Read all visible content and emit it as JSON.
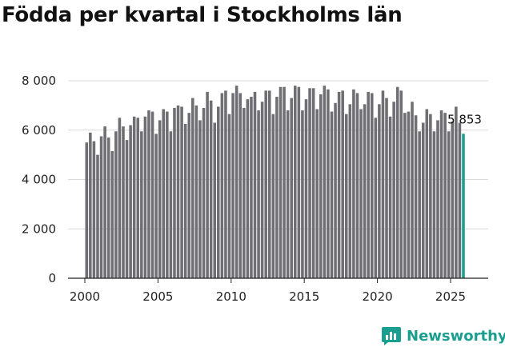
{
  "chart_data": {
    "type": "bar",
    "title": "Födda per kvartal i Stockholms län",
    "xlabel": "",
    "ylabel": "",
    "ylim": [
      0,
      8000
    ],
    "yticks": [
      0,
      2000,
      4000,
      6000,
      8000
    ],
    "ytick_labels": [
      "0",
      "2 000",
      "4 000",
      "6 000",
      "8 000"
    ],
    "xticks": [
      2000,
      2005,
      2010,
      2015,
      2020,
      2025
    ],
    "xtick_labels": [
      "2000",
      "2005",
      "2010",
      "2015",
      "2020",
      "2025"
    ],
    "start_year": 2000,
    "quarters_per_year": 4,
    "colors": {
      "bar": "#6e6e73",
      "highlight": "#1a9e8f",
      "grid": "#d9d9d9"
    },
    "highlight_index": 103,
    "annotation": "5 853",
    "values": [
      5500,
      5900,
      5550,
      5000,
      5750,
      6150,
      5700,
      5150,
      5950,
      6500,
      6150,
      5600,
      6200,
      6550,
      6500,
      5950,
      6550,
      6800,
      6750,
      5850,
      6400,
      6850,
      6750,
      5950,
      6900,
      7000,
      6950,
      6250,
      6700,
      7300,
      7000,
      6400,
      6900,
      7550,
      7200,
      6300,
      6950,
      7500,
      7600,
      6650,
      7500,
      7800,
      7500,
      6900,
      7250,
      7350,
      7550,
      6800,
      7150,
      7600,
      7600,
      6650,
      7350,
      7750,
      7750,
      6800,
      7300,
      7800,
      7750,
      6800,
      7250,
      7700,
      7700,
      6850,
      7450,
      7800,
      7650,
      6750,
      7100,
      7550,
      7600,
      6650,
      7050,
      7650,
      7500,
      6850,
      7050,
      7550,
      7500,
      6500,
      7050,
      7600,
      7300,
      6550,
      7150,
      7750,
      7600,
      6700,
      6750,
      7150,
      6600,
      5950,
      6300,
      6850,
      6650,
      5950,
      6400,
      6800,
      6700,
      5950,
      6350,
      6950,
      6300,
      5853
    ]
  },
  "brand": {
    "name": "Newsworthy",
    "icon": "chart-logo-icon"
  }
}
